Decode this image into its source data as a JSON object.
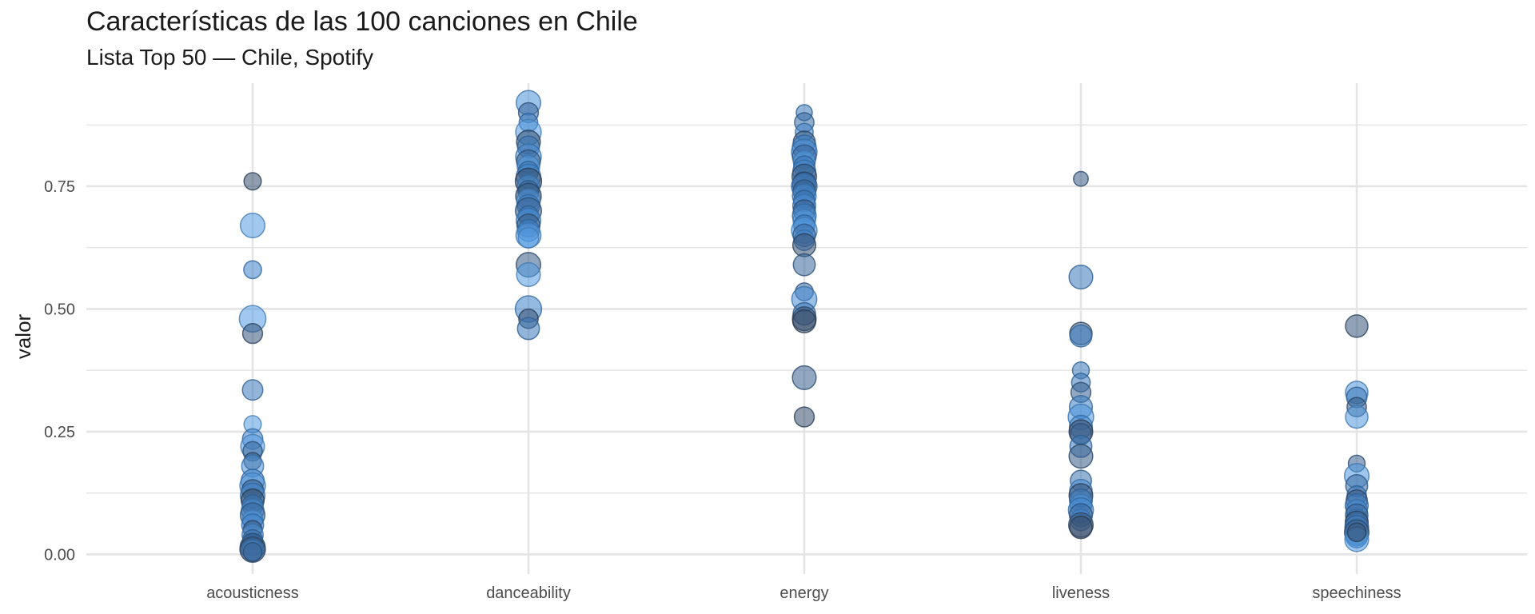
{
  "chart_data": {
    "type": "scatter",
    "title": "Características de las 100 canciones en Chile",
    "subtitle": "Lista Top 50 — Chile, Spotify",
    "xlabel": "",
    "ylabel": "valor",
    "categories": [
      "acousticness",
      "danceability",
      "energy",
      "liveness",
      "speechiness"
    ],
    "ylim": [
      -0.04,
      0.96
    ],
    "yticks": [
      0.0,
      0.25,
      0.5,
      0.75
    ],
    "ytick_labels": [
      "0.00",
      "0.25",
      "0.50",
      "0.75"
    ],
    "grid": true,
    "legend": "none",
    "colors": {
      "light": "#5aa4ec",
      "mid": "#3b7ec5",
      "dark": "#34435a",
      "grid": "#e4e4e4",
      "text": "#4d4d4d"
    },
    "points": {
      "acousticness": [
        {
          "y": 0.76,
          "s": 0.3,
          "t": 0.9
        },
        {
          "y": 0.67,
          "s": 0.58,
          "t": 0.1
        },
        {
          "y": 0.58,
          "s": 0.32,
          "t": 0.45
        },
        {
          "y": 0.48,
          "s": 0.66,
          "t": 0.12
        },
        {
          "y": 0.45,
          "s": 0.4,
          "t": 0.85
        },
        {
          "y": 0.335,
          "s": 0.42,
          "t": 0.55
        },
        {
          "y": 0.265,
          "s": 0.3,
          "t": 0.1
        },
        {
          "y": 0.235,
          "s": 0.42,
          "t": 0.45
        },
        {
          "y": 0.22,
          "s": 0.55,
          "t": 0.1
        },
        {
          "y": 0.21,
          "s": 0.38,
          "t": 0.7
        },
        {
          "y": 0.19,
          "s": 0.3,
          "t": 0.85
        },
        {
          "y": 0.18,
          "s": 0.48,
          "t": 0.25
        },
        {
          "y": 0.15,
          "s": 0.52,
          "t": 0.5
        },
        {
          "y": 0.14,
          "s": 0.62,
          "t": 0.2
        },
        {
          "y": 0.13,
          "s": 0.48,
          "t": 0.8
        },
        {
          "y": 0.12,
          "s": 0.58,
          "t": 0.4
        },
        {
          "y": 0.11,
          "s": 0.52,
          "t": 0.95
        },
        {
          "y": 0.1,
          "s": 0.44,
          "t": 0.55
        },
        {
          "y": 0.09,
          "s": 0.5,
          "t": 0.3
        },
        {
          "y": 0.08,
          "s": 0.58,
          "t": 0.7
        },
        {
          "y": 0.07,
          "s": 0.42,
          "t": 0.15
        },
        {
          "y": 0.06,
          "s": 0.48,
          "t": 0.45
        },
        {
          "y": 0.05,
          "s": 0.35,
          "t": 0.85
        },
        {
          "y": 0.04,
          "s": 0.45,
          "t": 0.25
        },
        {
          "y": 0.03,
          "s": 0.4,
          "t": 0.6
        },
        {
          "y": 0.02,
          "s": 0.5,
          "t": 0.8
        },
        {
          "y": 0.015,
          "s": 0.6,
          "t": 0.55
        },
        {
          "y": 0.01,
          "s": 0.62,
          "t": 0.9
        },
        {
          "y": 0.008,
          "s": 0.45,
          "t": 0.35
        },
        {
          "y": 0.005,
          "s": 0.35,
          "t": 0.75
        }
      ],
      "danceability": [
        {
          "y": 0.92,
          "s": 0.58,
          "t": 0.25
        },
        {
          "y": 0.9,
          "s": 0.4,
          "t": 0.7
        },
        {
          "y": 0.88,
          "s": 0.35,
          "t": 0.5
        },
        {
          "y": 0.86,
          "s": 0.62,
          "t": 0.1
        },
        {
          "y": 0.84,
          "s": 0.55,
          "t": 0.9
        },
        {
          "y": 0.83,
          "s": 0.48,
          "t": 0.55
        },
        {
          "y": 0.81,
          "s": 0.62,
          "t": 0.3
        },
        {
          "y": 0.8,
          "s": 0.55,
          "t": 0.75
        },
        {
          "y": 0.79,
          "s": 0.5,
          "t": 0.15
        },
        {
          "y": 0.78,
          "s": 0.42,
          "t": 0.55
        },
        {
          "y": 0.77,
          "s": 0.58,
          "t": 0.4
        },
        {
          "y": 0.76,
          "s": 0.65,
          "t": 0.95
        },
        {
          "y": 0.75,
          "s": 0.5,
          "t": 0.35
        },
        {
          "y": 0.74,
          "s": 0.45,
          "t": 0.65
        },
        {
          "y": 0.73,
          "s": 0.62,
          "t": 0.85
        },
        {
          "y": 0.72,
          "s": 0.55,
          "t": 0.2
        },
        {
          "y": 0.71,
          "s": 0.5,
          "t": 0.45
        },
        {
          "y": 0.7,
          "s": 0.64,
          "t": 0.75
        },
        {
          "y": 0.69,
          "s": 0.4,
          "t": 0.55
        },
        {
          "y": 0.68,
          "s": 0.58,
          "t": 0.3
        },
        {
          "y": 0.67,
          "s": 0.52,
          "t": 0.8
        },
        {
          "y": 0.66,
          "s": 0.48,
          "t": 0.5
        },
        {
          "y": 0.65,
          "s": 0.6,
          "t": 0.2
        },
        {
          "y": 0.645,
          "s": 0.42,
          "t": 0.1
        },
        {
          "y": 0.59,
          "s": 0.58,
          "t": 0.8
        },
        {
          "y": 0.57,
          "s": 0.55,
          "t": 0.1
        },
        {
          "y": 0.5,
          "s": 0.65,
          "t": 0.45
        },
        {
          "y": 0.48,
          "s": 0.38,
          "t": 0.9
        },
        {
          "y": 0.46,
          "s": 0.48,
          "t": 0.55
        }
      ],
      "energy": [
        {
          "y": 0.9,
          "s": 0.25,
          "t": 0.55
        },
        {
          "y": 0.88,
          "s": 0.38,
          "t": 0.65
        },
        {
          "y": 0.86,
          "s": 0.32,
          "t": 0.4
        },
        {
          "y": 0.84,
          "s": 0.48,
          "t": 0.85
        },
        {
          "y": 0.83,
          "s": 0.55,
          "t": 0.5
        },
        {
          "y": 0.82,
          "s": 0.62,
          "t": 0.3
        },
        {
          "y": 0.81,
          "s": 0.55,
          "t": 0.7
        },
        {
          "y": 0.8,
          "s": 0.48,
          "t": 0.15
        },
        {
          "y": 0.79,
          "s": 0.45,
          "t": 0.55
        },
        {
          "y": 0.78,
          "s": 0.52,
          "t": 0.4
        },
        {
          "y": 0.77,
          "s": 0.58,
          "t": 0.85
        },
        {
          "y": 0.76,
          "s": 0.45,
          "t": 0.2
        },
        {
          "y": 0.755,
          "s": 0.55,
          "t": 0.95
        },
        {
          "y": 0.75,
          "s": 0.62,
          "t": 0.5
        },
        {
          "y": 0.74,
          "s": 0.5,
          "t": 0.75
        },
        {
          "y": 0.73,
          "s": 0.55,
          "t": 0.35
        },
        {
          "y": 0.72,
          "s": 0.45,
          "t": 0.6
        },
        {
          "y": 0.71,
          "s": 0.52,
          "t": 0.3
        },
        {
          "y": 0.7,
          "s": 0.48,
          "t": 0.8
        },
        {
          "y": 0.69,
          "s": 0.55,
          "t": 0.45
        },
        {
          "y": 0.68,
          "s": 0.5,
          "t": 0.15
        },
        {
          "y": 0.67,
          "s": 0.45,
          "t": 0.55
        },
        {
          "y": 0.66,
          "s": 0.62,
          "t": 0.1
        },
        {
          "y": 0.65,
          "s": 0.5,
          "t": 0.65
        },
        {
          "y": 0.64,
          "s": 0.42,
          "t": 0.35
        },
        {
          "y": 0.63,
          "s": 0.52,
          "t": 0.9
        },
        {
          "y": 0.59,
          "s": 0.48,
          "t": 0.7
        },
        {
          "y": 0.535,
          "s": 0.32,
          "t": 0.65
        },
        {
          "y": 0.52,
          "s": 0.6,
          "t": 0.3
        },
        {
          "y": 0.49,
          "s": 0.5,
          "t": 0.6
        },
        {
          "y": 0.48,
          "s": 0.55,
          "t": 0.85
        },
        {
          "y": 0.475,
          "s": 0.52,
          "t": 0.95
        },
        {
          "y": 0.36,
          "s": 0.55,
          "t": 0.75
        },
        {
          "y": 0.28,
          "s": 0.4,
          "t": 0.9
        }
      ],
      "liveness": [
        {
          "y": 0.765,
          "s": 0.2,
          "t": 0.8
        },
        {
          "y": 0.565,
          "s": 0.55,
          "t": 0.55
        },
        {
          "y": 0.45,
          "s": 0.5,
          "t": 0.85
        },
        {
          "y": 0.445,
          "s": 0.48,
          "t": 0.5
        },
        {
          "y": 0.375,
          "s": 0.28,
          "t": 0.55
        },
        {
          "y": 0.35,
          "s": 0.35,
          "t": 0.55
        },
        {
          "y": 0.33,
          "s": 0.4,
          "t": 0.75
        },
        {
          "y": 0.3,
          "s": 0.52,
          "t": 0.5
        },
        {
          "y": 0.28,
          "s": 0.62,
          "t": 0.2
        },
        {
          "y": 0.26,
          "s": 0.52,
          "t": 0.4
        },
        {
          "y": 0.25,
          "s": 0.55,
          "t": 0.95
        },
        {
          "y": 0.245,
          "s": 0.45,
          "t": 0.75
        },
        {
          "y": 0.22,
          "s": 0.48,
          "t": 0.55
        },
        {
          "y": 0.2,
          "s": 0.55,
          "t": 0.8
        },
        {
          "y": 0.15,
          "s": 0.45,
          "t": 0.6
        },
        {
          "y": 0.13,
          "s": 0.5,
          "t": 0.3
        },
        {
          "y": 0.12,
          "s": 0.55,
          "t": 0.9
        },
        {
          "y": 0.11,
          "s": 0.52,
          "t": 0.55
        },
        {
          "y": 0.1,
          "s": 0.48,
          "t": 0.2
        },
        {
          "y": 0.09,
          "s": 0.6,
          "t": 0.4
        },
        {
          "y": 0.08,
          "s": 0.52,
          "t": 0.7
        },
        {
          "y": 0.07,
          "s": 0.45,
          "t": 0.3
        },
        {
          "y": 0.06,
          "s": 0.58,
          "t": 0.85
        },
        {
          "y": 0.055,
          "s": 0.5,
          "t": 0.95
        }
      ],
      "speechiness": [
        {
          "y": 0.465,
          "s": 0.5,
          "t": 0.85
        },
        {
          "y": 0.33,
          "s": 0.5,
          "t": 0.2
        },
        {
          "y": 0.32,
          "s": 0.42,
          "t": 0.55
        },
        {
          "y": 0.3,
          "s": 0.38,
          "t": 0.8
        },
        {
          "y": 0.28,
          "s": 0.5,
          "t": 0.15
        },
        {
          "y": 0.185,
          "s": 0.28,
          "t": 0.75
        },
        {
          "y": 0.16,
          "s": 0.58,
          "t": 0.15
        },
        {
          "y": 0.14,
          "s": 0.48,
          "t": 0.65
        },
        {
          "y": 0.12,
          "s": 0.38,
          "t": 0.55
        },
        {
          "y": 0.11,
          "s": 0.45,
          "t": 0.85
        },
        {
          "y": 0.1,
          "s": 0.52,
          "t": 0.5
        },
        {
          "y": 0.09,
          "s": 0.45,
          "t": 0.3
        },
        {
          "y": 0.08,
          "s": 0.5,
          "t": 0.7
        },
        {
          "y": 0.07,
          "s": 0.48,
          "t": 0.4
        },
        {
          "y": 0.065,
          "s": 0.52,
          "t": 0.9
        },
        {
          "y": 0.06,
          "s": 0.45,
          "t": 0.2
        },
        {
          "y": 0.055,
          "s": 0.55,
          "t": 0.6
        },
        {
          "y": 0.05,
          "s": 0.48,
          "t": 0.35
        },
        {
          "y": 0.045,
          "s": 0.58,
          "t": 0.8
        },
        {
          "y": 0.04,
          "s": 0.5,
          "t": 0.15
        },
        {
          "y": 0.035,
          "s": 0.45,
          "t": 0.55
        },
        {
          "y": 0.03,
          "s": 0.55,
          "t": 0.1
        },
        {
          "y": 0.045,
          "s": 0.35,
          "t": 0.95
        }
      ]
    }
  }
}
